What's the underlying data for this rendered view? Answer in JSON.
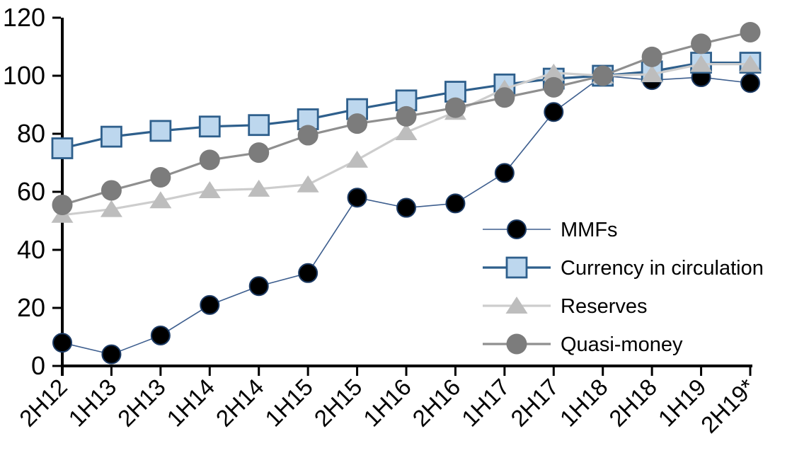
{
  "figure": {
    "background": "#ffffff"
  },
  "chart_data": {
    "type": "line",
    "categories": [
      "2H12",
      "1H13",
      "2H13",
      "1H14",
      "2H14",
      "1H15",
      "2H15",
      "1H16",
      "2H16",
      "1H17",
      "2H17",
      "1H18",
      "2H18",
      "1H19",
      "2H19*"
    ],
    "y_ticks": [
      0,
      20,
      40,
      60,
      80,
      100,
      120
    ],
    "ylim": [
      0,
      120
    ],
    "grid": false,
    "legend_position": "inside-right",
    "axis_color": "#000000",
    "series": [
      {
        "name": "MMFs",
        "marker": "filled-circle",
        "line_color": "#3D5E8E",
        "marker_fill": "#000000",
        "marker_stroke": "#1C3A63",
        "line_width": 1.6,
        "values": [
          8,
          4,
          10.5,
          21,
          27.5,
          32,
          58,
          54.5,
          56,
          66.5,
          87.5,
          100,
          98.5,
          99.5,
          97.5
        ]
      },
      {
        "name": "Currency in circulation",
        "marker": "square",
        "line_color": "#2E5F8C",
        "marker_fill": "#BDD7EE",
        "marker_stroke": "#2E5F8C",
        "line_width": 3.2,
        "values": [
          75,
          79,
          81,
          82.5,
          83,
          85,
          88.5,
          91.5,
          94.5,
          97,
          99,
          100,
          101.5,
          104.5,
          104.5
        ]
      },
      {
        "name": "Reserves",
        "marker": "triangle",
        "line_color": "#CDCDCD",
        "marker_fill": "#BDBDBD",
        "marker_stroke": "#BDBDBD",
        "line_width": 3.2,
        "values": [
          52,
          54,
          57,
          60.5,
          61,
          62.5,
          71,
          80.5,
          87.5,
          95.5,
          101,
          100,
          100.5,
          104,
          104
        ]
      },
      {
        "name": "Quasi-money",
        "marker": "circle",
        "line_color": "#8F8F8F",
        "marker_fill": "#7C7C7C",
        "marker_stroke": "#7C7C7C",
        "line_width": 3.2,
        "values": [
          55.5,
          60.5,
          65,
          71,
          73.5,
          79.5,
          83.5,
          86,
          89,
          92.5,
          96,
          100,
          106.5,
          111,
          115
        ]
      }
    ]
  }
}
